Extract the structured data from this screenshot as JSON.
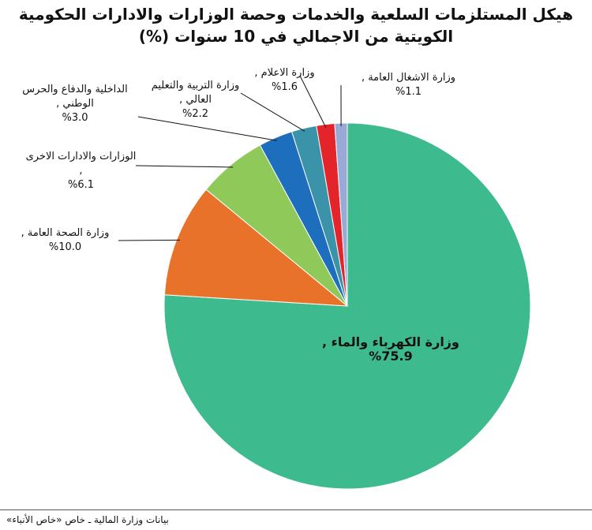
{
  "chart_data": {
    "type": "pie",
    "title": "هيكل المستلزمات السلعية والخدمات وحصة الوزارات والادارات الحكومية الكويتية من الاجمالي في 10 سنوات (%)",
    "categories": [
      "وزارة الكهرباء والماء ,",
      "وزارة الصحة العامة ,",
      "الوزارات والادارات الاخرى ,",
      "الداخلية والدفاع والحرس الوطني ,",
      "وزارة التربية والتعليم العالي ,",
      "وزارة الاعلام ,",
      "وزارة الاشغال العامة ,"
    ],
    "values": [
      75.9,
      10.0,
      6.1,
      3.0,
      2.2,
      1.6,
      1.1
    ],
    "value_labels": [
      "%75.9",
      "%10.0",
      "%6.1",
      "%3.0",
      "%2.2",
      "%1.6",
      "%1.1"
    ],
    "colors": [
      "#3dbb8f",
      "#e8722a",
      "#8fc95a",
      "#1d6fbe",
      "#3a93a8",
      "#e3242b",
      "#9aaad6"
    ],
    "source": "بيانات وزارة المالية ـ خاص «خاص الأنباء»"
  }
}
